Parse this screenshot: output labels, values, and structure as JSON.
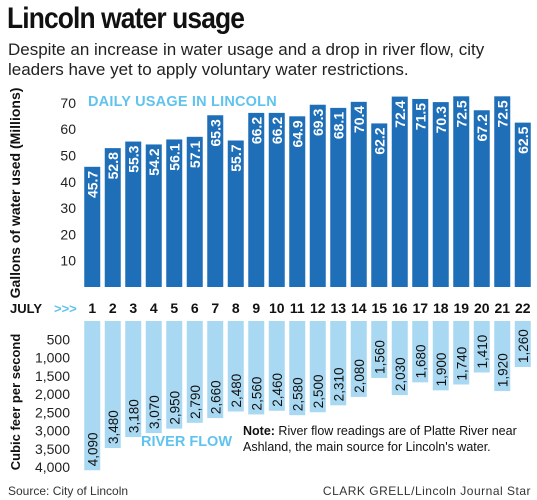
{
  "header": {
    "title": "Lincoln water usage",
    "subtitle": "Despite an increase in water usage and a drop in river flow, city leaders have yet to apply voluntary water restrictions."
  },
  "footer": {
    "source": "Source: City of Lincoln",
    "credit": "CLARK GRELL/Lincoln Journal Star"
  },
  "note": {
    "label": "Note:",
    "text": " River flow readings are of Platte River near Ashland, the main source for Lincoln's water."
  },
  "colors": {
    "usage_bar": "#1f6fb8",
    "flow_bar": "#a9d9f2",
    "usage_label": "#ffffff",
    "flow_label": "#111111",
    "accent_text": "#5fc3ee"
  },
  "chart_data": [
    {
      "type": "bar",
      "title": "DAILY USAGE IN LINCOLN",
      "ylabel": "Gallons of water used (Millions)",
      "xlabel": "JULY >>>",
      "categories": [
        "1",
        "2",
        "3",
        "4",
        "5",
        "6",
        "7",
        "8",
        "9",
        "10",
        "11",
        "12",
        "13",
        "14",
        "15",
        "16",
        "17",
        "18",
        "19",
        "20",
        "21",
        "22"
      ],
      "values": [
        45.7,
        52.8,
        55.3,
        54.2,
        56.1,
        57.1,
        65.3,
        55.7,
        66.2,
        66.2,
        64.9,
        69.3,
        68.1,
        70.4,
        62.2,
        72.4,
        71.5,
        70.3,
        72.5,
        67.2,
        72.5,
        62.5
      ],
      "value_labels": [
        "45.7",
        "52.8",
        "55.3",
        "54.2",
        "56.1",
        "57.1",
        "65.3",
        "55.7",
        "66.2",
        "66.2",
        "64.9",
        "69.3",
        "68.1",
        "70.4",
        "62.2",
        "72.4",
        "71.5",
        "70.3",
        "72.5",
        "67.2",
        "72.5",
        "62.5"
      ],
      "yticks": [
        "10",
        "20",
        "30",
        "40",
        "50",
        "60",
        "70"
      ],
      "ylim": [
        0,
        73
      ],
      "grid": false
    },
    {
      "type": "bar",
      "title": "RIVER FLOW",
      "ylabel": "Cubic feer per second",
      "categories": [
        "1",
        "2",
        "3",
        "4",
        "5",
        "6",
        "7",
        "8",
        "9",
        "10",
        "11",
        "12",
        "13",
        "14",
        "15",
        "16",
        "17",
        "18",
        "19",
        "20",
        "21",
        "22"
      ],
      "values": [
        4090,
        3480,
        3180,
        3070,
        2950,
        2790,
        2660,
        2480,
        2560,
        2460,
        2580,
        2500,
        2310,
        2080,
        1560,
        2030,
        1680,
        1900,
        1740,
        1410,
        1920,
        1260
      ],
      "value_labels": [
        "4,090",
        "3,480",
        "3,180",
        "3,070",
        "2,950",
        "2,790",
        "2,660",
        "2,480",
        "2,560",
        "2,460",
        "2,580",
        "2,500",
        "2,310",
        "2,080",
        "1,560",
        "2,030",
        "1,680",
        "1,900",
        "1,740",
        "1,410",
        "1,920",
        "1,260"
      ],
      "yticks": [
        "500",
        "1,000",
        "1,500",
        "2,000",
        "2,500",
        "3,000",
        "3,500",
        "4,000"
      ],
      "ylim": [
        0,
        4000
      ],
      "direction": "downward",
      "grid": false
    }
  ]
}
